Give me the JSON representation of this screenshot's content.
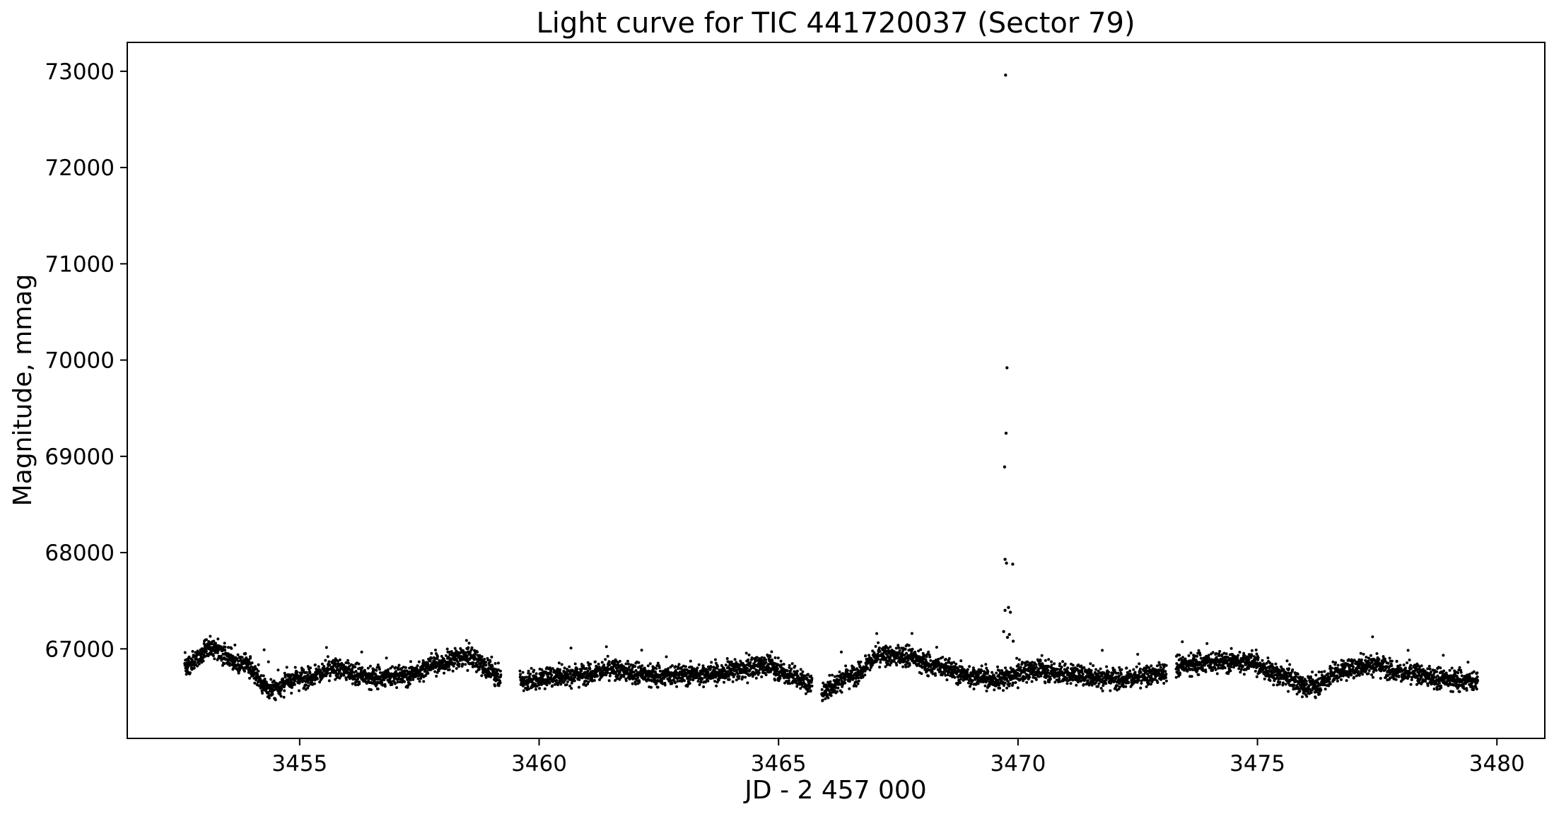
{
  "chart_data": {
    "type": "scatter",
    "title": "Light curve for TIC 441720037 (Sector 79)",
    "xlabel": "JD - 2 457 000",
    "ylabel": "Magnitude, mmag",
    "xlim": [
      3451.4,
      3481.0
    ],
    "ylim": [
      66070,
      73300
    ],
    "x_ticks": [
      3455,
      3460,
      3465,
      3470,
      3475,
      3480
    ],
    "y_ticks": [
      67000,
      68000,
      69000,
      70000,
      71000,
      72000,
      73000
    ],
    "grid": false,
    "legend": "none",
    "marker_color": "#000000",
    "series": [
      {
        "segments": [
          {
            "x": [
              3452.6,
              3453.2,
              3453.8,
              3454.4,
              3455.0,
              3455.8,
              3456.5,
              3457.2,
              3457.9,
              3458.5,
              3459.2
            ],
            "y": [
              66820,
              67000,
              66850,
              66580,
              66700,
              66790,
              66700,
              66720,
              66850,
              66920,
              66720
            ]
          },
          {
            "x": [
              3459.6,
              3460.5,
              3461.5,
              3462.5,
              3463.5,
              3464.2,
              3464.7,
              3465.3,
              3465.7
            ],
            "y": [
              66660,
              66720,
              66780,
              66720,
              66740,
              66780,
              66830,
              66720,
              66620
            ]
          },
          {
            "x": [
              3465.9,
              3466.5,
              3467.1,
              3467.6,
              3468.3,
              3469.0,
              3469.6,
              3470.3,
              3471.0,
              3471.8,
              3472.5,
              3473.1
            ],
            "y": [
              66560,
              66720,
              66920,
              66930,
              66820,
              66720,
              66680,
              66780,
              66740,
              66700,
              66700,
              66760
            ]
          },
          {
            "x": [
              3473.3,
              3474.0,
              3474.8,
              3475.5,
              3476.1,
              3476.8,
              3477.4,
              3478.2,
              3479.0,
              3479.6
            ],
            "y": [
              66820,
              66860,
              66870,
              66720,
              66600,
              66780,
              66840,
              66740,
              66680,
              66660
            ]
          }
        ],
        "outliers": {
          "x": [
            3469.74,
            3469.77,
            3469.75,
            3469.72,
            3469.73,
            3469.76,
            3469.89,
            3469.8,
            3469.73,
            3469.84,
            3469.7,
            3469.82,
            3469.78,
            3469.9
          ],
          "y": [
            72960,
            69920,
            69240,
            68890,
            67930,
            67890,
            67880,
            67430,
            67400,
            67380,
            67180,
            67150,
            67120,
            67080
          ]
        }
      }
    ]
  }
}
